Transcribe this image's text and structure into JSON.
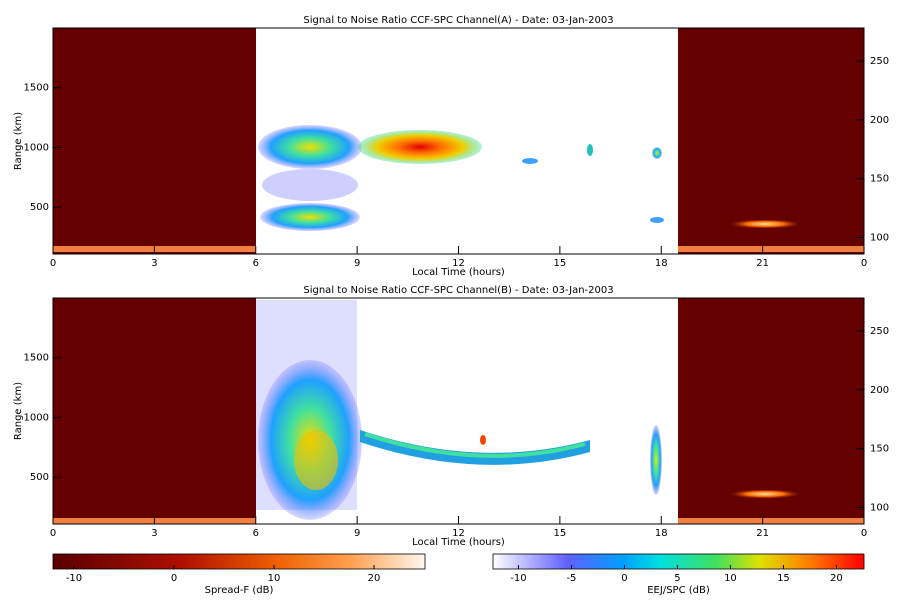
{
  "chart_data": [
    {
      "type": "heatmap",
      "title": "Signal to Noise Ratio CCF-SPC Channel(A) - Date: 03-Jan-2003",
      "x_label": "Local Time (hours)",
      "y_label": "Range (km)",
      "xlim": [
        0,
        24
      ],
      "xticks": [
        0,
        3,
        6,
        9,
        12,
        15,
        18,
        21,
        {
          "value": 24,
          "label": "0"
        }
      ],
      "ylim": [
        108,
        2000
      ],
      "yticks": [
        500,
        1000,
        1500
      ],
      "y2lim": [
        86,
        278
      ],
      "y2ticks": [
        100,
        150,
        200,
        250
      ]
    },
    {
      "type": "heatmap",
      "title": "Signal to Noise Ratio CCF-SPC Channel(B) - Date: 03-Jan-2003",
      "x_label": "Local Time (hours)",
      "y_label": "Range (km)",
      "xlim": [
        0,
        24
      ],
      "xticks": [
        0,
        3,
        6,
        9,
        12,
        15,
        18,
        21,
        {
          "value": 24,
          "label": "0"
        }
      ],
      "ylim": [
        108,
        2000
      ],
      "yticks": [
        500,
        1000,
        1500
      ],
      "y2lim": [
        86,
        278
      ],
      "y2ticks": [
        100,
        150,
        200,
        250
      ]
    }
  ],
  "colorbars": [
    {
      "label": "Spread-F (dB)",
      "lim": [
        -12.1,
        25.1
      ],
      "ticks": [
        -10,
        0,
        10,
        20
      ]
    },
    {
      "label": "EEJ/SPC (dB)",
      "lim": [
        -12.4,
        22.6
      ],
      "ticks": [
        -10,
        -5,
        0,
        5,
        10,
        15,
        20
      ]
    }
  ]
}
